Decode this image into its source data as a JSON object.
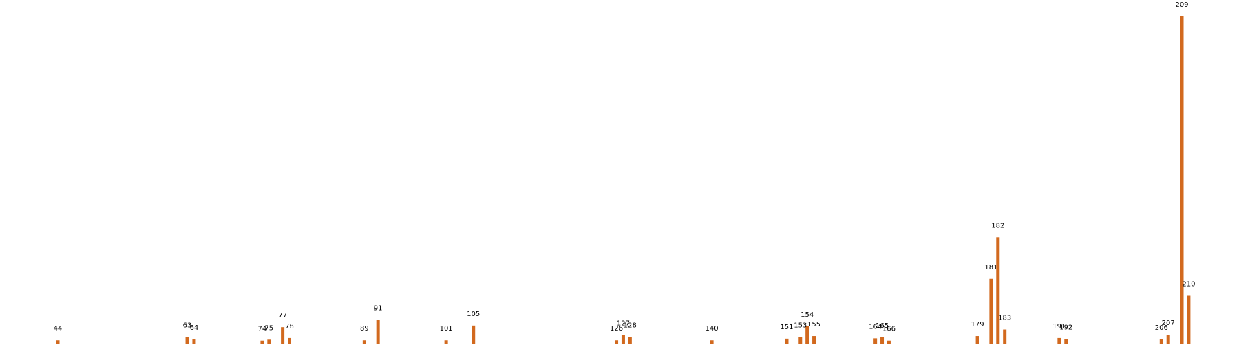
{
  "chart_data": {
    "type": "bar",
    "title": "",
    "xlabel": "",
    "ylabel": "",
    "grid": false,
    "axes_visible": false,
    "bar_color": "#d2691e",
    "x_range": [
      40,
      215
    ],
    "ylim": [
      0,
      1000
    ],
    "points": [
      {
        "x": 44,
        "label": "44",
        "value": 10
      },
      {
        "x": 63,
        "label": "63",
        "value": 20
      },
      {
        "x": 64,
        "label": "64",
        "value": 13
      },
      {
        "x": 74,
        "label": "74",
        "value": 9
      },
      {
        "x": 75,
        "label": "75",
        "value": 12
      },
      {
        "x": 77,
        "label": "77",
        "value": 50
      },
      {
        "x": 78,
        "label": "78",
        "value": 17
      },
      {
        "x": 89,
        "label": "89",
        "value": 10
      },
      {
        "x": 91,
        "label": "91",
        "value": 72
      },
      {
        "x": 101,
        "label": "101",
        "value": 10
      },
      {
        "x": 105,
        "label": "105",
        "value": 55
      },
      {
        "x": 126,
        "label": "126",
        "value": 10
      },
      {
        "x": 127,
        "label": "127",
        "value": 26
      },
      {
        "x": 128,
        "label": "128",
        "value": 20
      },
      {
        "x": 140,
        "label": "140",
        "value": 10
      },
      {
        "x": 151,
        "label": "151",
        "value": 15
      },
      {
        "x": 153,
        "label": "153",
        "value": 20
      },
      {
        "x": 154,
        "label": "154",
        "value": 53
      },
      {
        "x": 155,
        "label": "155",
        "value": 23
      },
      {
        "x": 164,
        "label": "164",
        "value": 16
      },
      {
        "x": 165,
        "label": "165",
        "value": 19
      },
      {
        "x": 166,
        "label": "166",
        "value": 9
      },
      {
        "x": 179,
        "label": "179",
        "value": 23
      },
      {
        "x": 181,
        "label": "181",
        "value": 198
      },
      {
        "x": 182,
        "label": "182",
        "value": 325
      },
      {
        "x": 183,
        "label": "183",
        "value": 43
      },
      {
        "x": 191,
        "label": "191",
        "value": 17
      },
      {
        "x": 192,
        "label": "192",
        "value": 14
      },
      {
        "x": 206,
        "label": "206",
        "value": 13
      },
      {
        "x": 207,
        "label": "207",
        "value": 27
      },
      {
        "x": 209,
        "label": "209",
        "value": 1000
      },
      {
        "x": 210,
        "label": "210",
        "value": 146
      }
    ]
  }
}
